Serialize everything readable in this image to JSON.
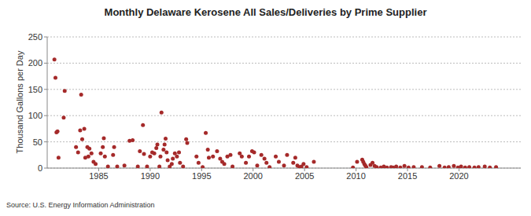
{
  "chart_data": {
    "type": "scatter",
    "title": "Monthly Delaware Kerosene All Sales/Deliveries by Prime Supplier",
    "y_label": "Thousand Gallons per Day",
    "source": "Source: U.S. Energy Information Administration",
    "color": "#a52a2a",
    "marker": "circle",
    "grid": true,
    "xlim": [
      1980,
      2026
    ],
    "xticks": [
      1985,
      1990,
      1995,
      2000,
      2005,
      2010,
      2015,
      2020
    ],
    "ylim": [
      0,
      250
    ],
    "yticks": [
      0,
      50,
      100,
      150,
      200,
      250
    ],
    "x": [
      1980.7,
      1980.8,
      1980.9,
      1981.0,
      1981.1,
      1981.6,
      1981.7,
      1982.8,
      1983.0,
      1983.2,
      1983.3,
      1983.4,
      1983.6,
      1983.7,
      1983.9,
      1984.0,
      1984.1,
      1984.3,
      1984.5,
      1984.7,
      1985.2,
      1985.4,
      1985.5,
      1985.6,
      1985.9,
      1986.4,
      1986.5,
      1986.8,
      1987.5,
      1988.0,
      1988.3,
      1988.8,
      1989.0,
      1989.3,
      1989.4,
      1989.7,
      1990.0,
      1990.2,
      1990.4,
      1990.6,
      1990.7,
      1990.9,
      1991.0,
      1991.1,
      1991.3,
      1991.4,
      1991.5,
      1991.6,
      1991.7,
      1991.9,
      1992.1,
      1992.2,
      1992.4,
      1992.6,
      1992.8,
      1992.9,
      1993.2,
      1993.5,
      1993.6,
      1994.5,
      1994.7,
      1995.1,
      1995.4,
      1995.6,
      1995.7,
      1996.1,
      1996.5,
      1996.8,
      1997.0,
      1997.2,
      1997.5,
      1997.8,
      1998.0,
      1998.7,
      1998.9,
      1999.3,
      1999.6,
      1999.9,
      2000.1,
      2000.4,
      2000.8,
      2001.1,
      2001.3,
      2001.6,
      2002.2,
      2002.5,
      2003.0,
      2003.3,
      2003.9,
      2004.1,
      2004.3,
      2004.5,
      2004.7,
      2004.9,
      2005.2,
      2005.9,
      2009.7,
      2010.1,
      2010.6,
      2010.7,
      2010.8,
      2010.9,
      2011.0,
      2011.4,
      2011.6,
      2011.8,
      2012.0,
      2012.4,
      2012.7,
      2013.0,
      2013.4,
      2013.6,
      2013.9,
      2014.3,
      2014.7,
      2015.1,
      2015.6,
      2016.4,
      2017.2,
      2018.1,
      2018.6,
      2019.0,
      2019.5,
      2019.9,
      2020.2,
      2020.6,
      2021.0,
      2021.5,
      2021.9,
      2022.5,
      2023.0,
      2023.6
    ],
    "values": [
      207,
      172,
      68,
      70,
      20,
      96,
      147,
      40,
      30,
      72,
      140,
      55,
      75,
      20,
      40,
      22,
      37,
      28,
      12,
      8,
      28,
      40,
      57,
      22,
      3,
      25,
      40,
      3,
      5,
      52,
      53,
      3,
      32,
      82,
      27,
      3,
      22,
      30,
      28,
      38,
      45,
      3,
      22,
      106,
      35,
      45,
      56,
      30,
      15,
      3,
      8,
      18,
      28,
      22,
      30,
      10,
      3,
      55,
      48,
      22,
      10,
      2,
      67,
      35,
      20,
      22,
      32,
      18,
      12,
      8,
      22,
      25,
      3,
      28,
      22,
      10,
      22,
      32,
      30,
      5,
      25,
      18,
      10,
      2,
      22,
      12,
      5,
      25,
      10,
      20,
      5,
      2,
      3,
      8,
      2,
      12,
      1,
      12,
      16,
      12,
      8,
      5,
      2,
      6,
      10,
      4,
      2,
      1,
      3,
      1,
      2,
      1,
      3,
      1,
      4,
      1,
      2,
      2,
      1,
      4,
      1,
      2,
      4,
      1,
      3,
      1,
      2,
      1,
      2,
      3,
      1,
      2
    ]
  }
}
